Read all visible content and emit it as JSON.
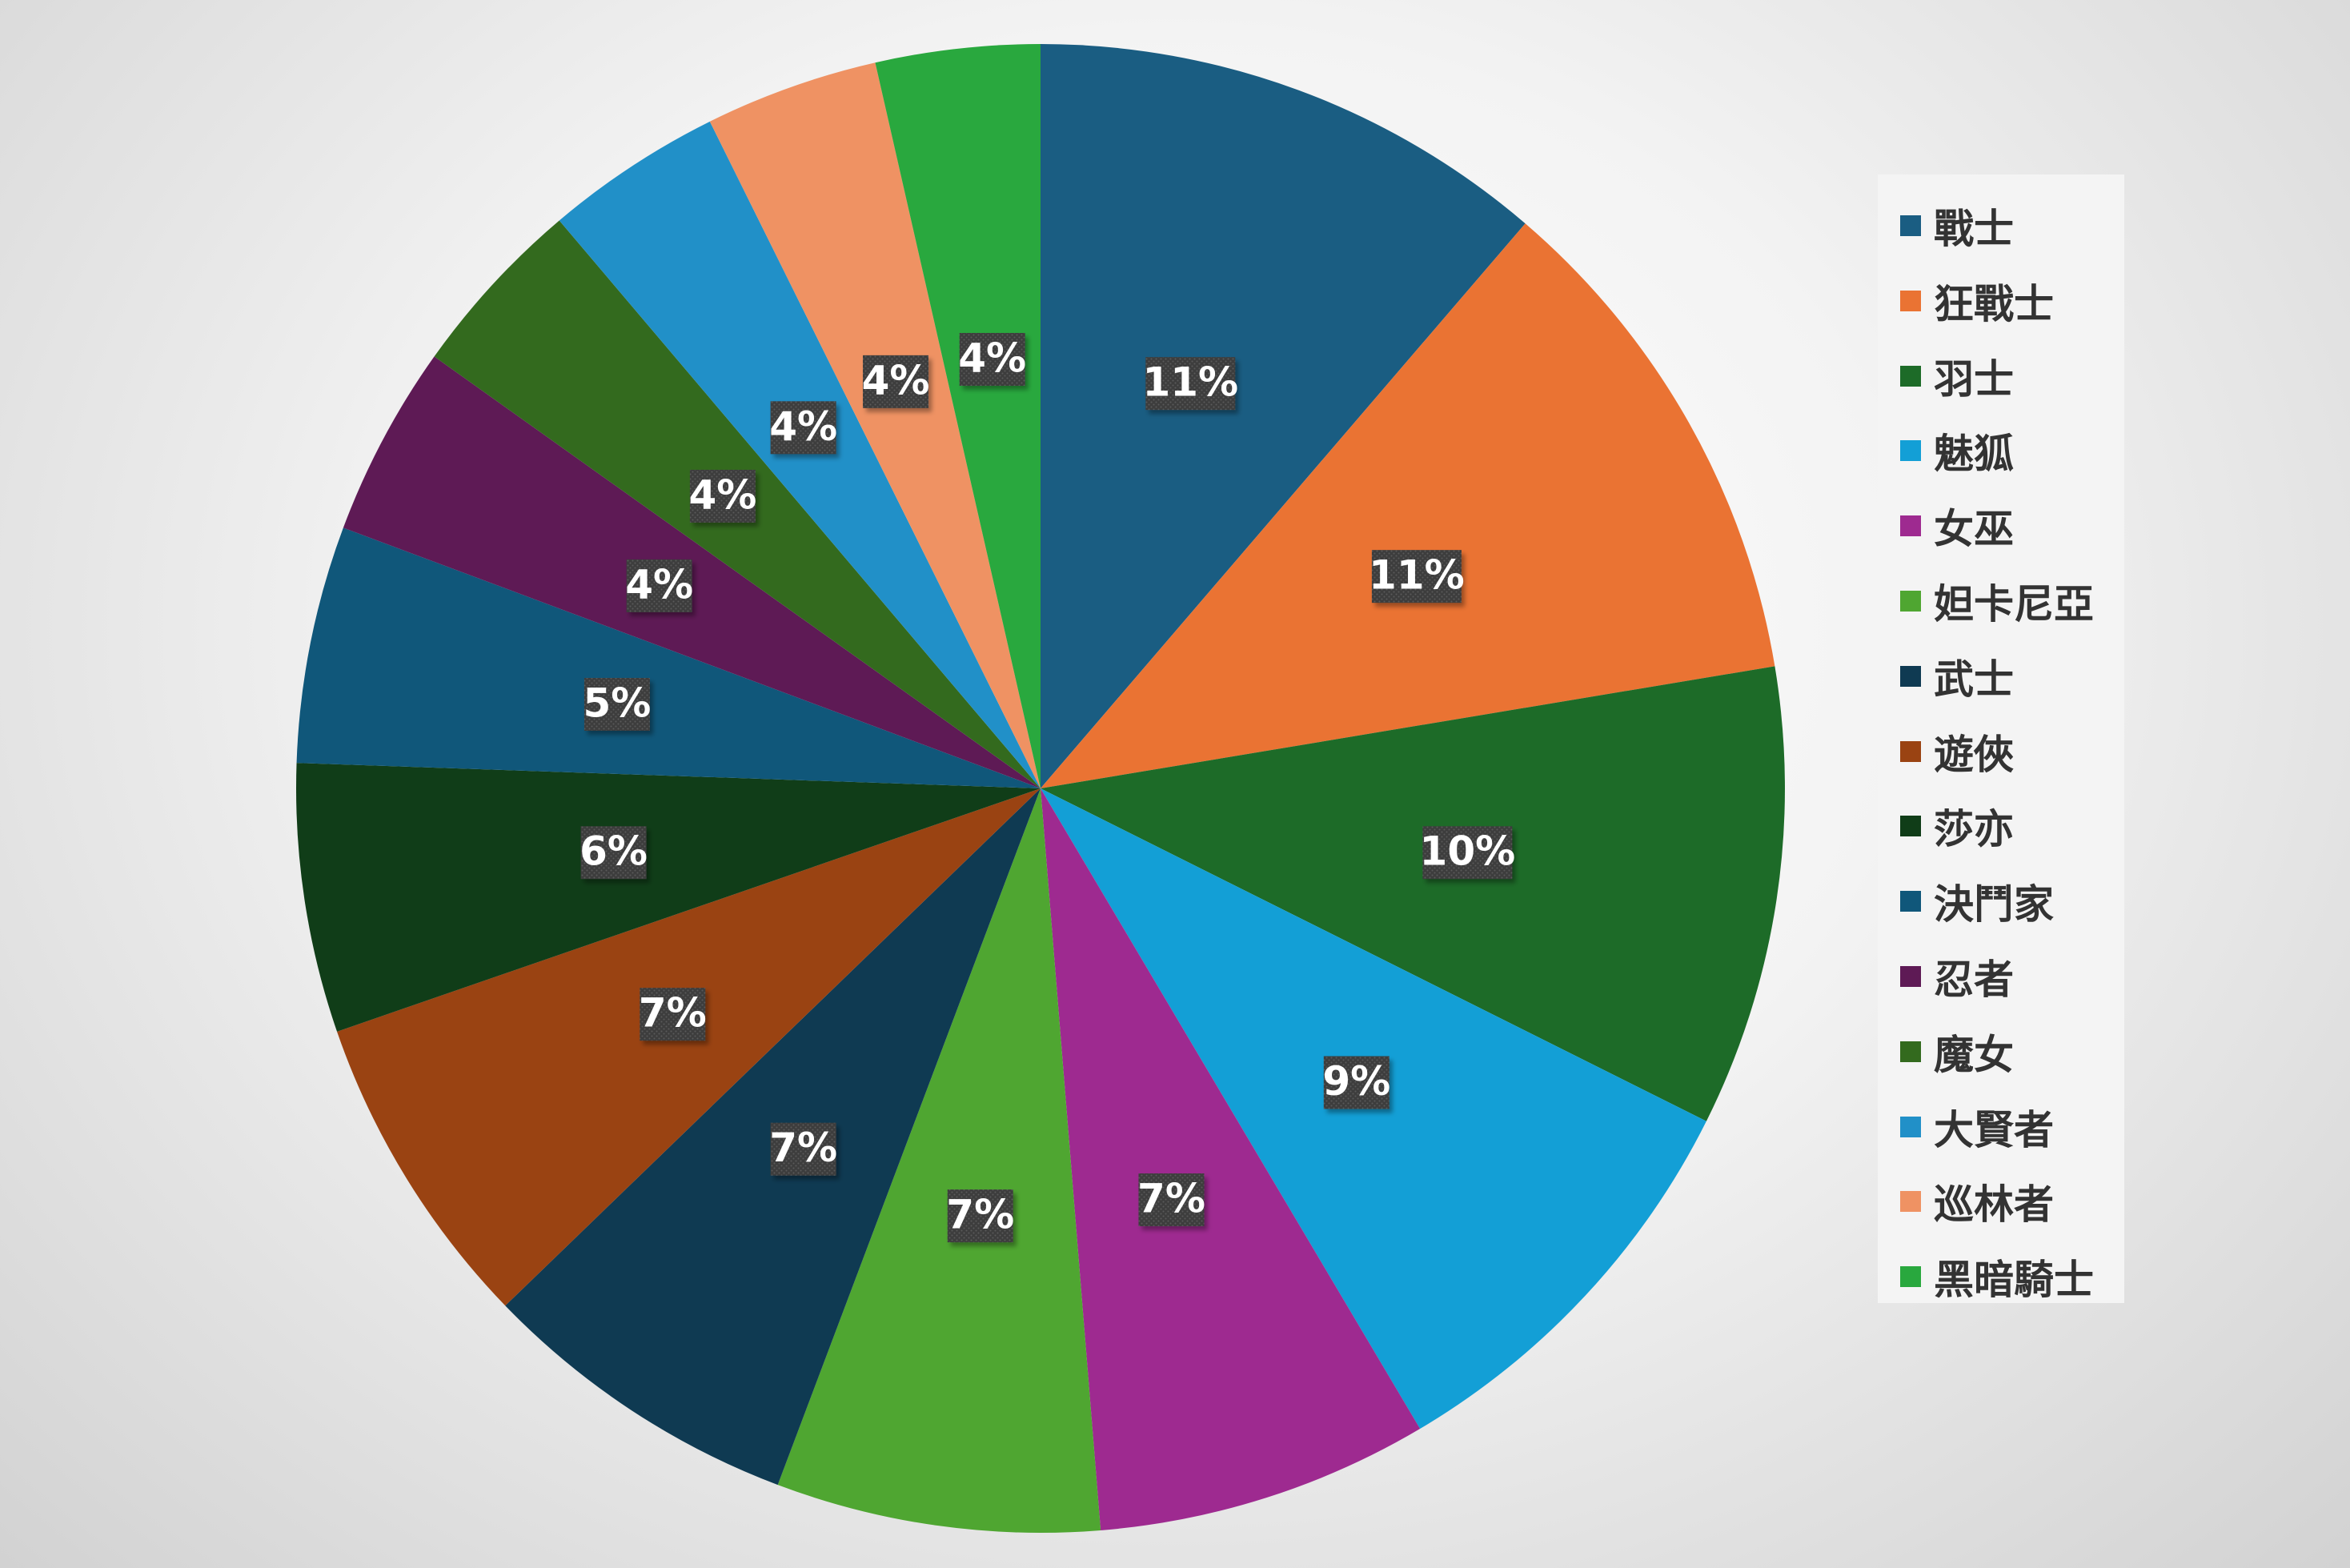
{
  "chart_data": {
    "type": "pie",
    "start_angle_deg": 0,
    "direction": "clockwise",
    "legend_position": "right",
    "colors": [
      "#1a5d82",
      "#ea7333",
      "#1d6b28",
      "#139fd6",
      "#9e2a90",
      "#4fa631",
      "#0f3a52",
      "#9a4312",
      "#103d18",
      "#10577a",
      "#5e1a55",
      "#336a1e",
      "#2190c8",
      "#ef9263",
      "#29a83e"
    ],
    "categories": [
      "戰士",
      "狂戰士",
      "羽士",
      "魅狐",
      "女巫",
      "妲卡尼亞",
      "武士",
      "遊俠",
      "莎亦",
      "決鬥家",
      "忍者",
      "魔女",
      "大賢者",
      "巡林者",
      "黑暗騎士"
    ],
    "values": [
      11.4,
      11.2,
      10.1,
      9.2,
      7.3,
      7.1,
      7.1,
      7.0,
      5.9,
      5.2,
      4.2,
      4.0,
      3.9,
      3.8,
      3.6
    ],
    "labels": [
      "11%",
      "11%",
      "10%",
      "9%",
      "7%",
      "7%",
      "7%",
      "7%",
      "6%",
      "5%",
      "4%",
      "4%",
      "4%",
      "4%",
      "4%"
    ]
  }
}
